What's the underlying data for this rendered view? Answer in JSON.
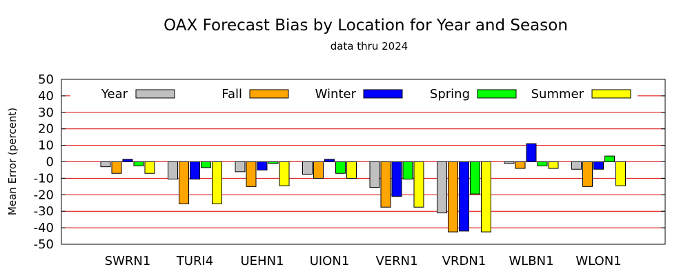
{
  "chart_data": {
    "type": "bar",
    "title": "OAX Forecast Bias by Location for Year and Season",
    "subtitle": "data thru 2024",
    "xlabel": "",
    "ylabel": "Mean Error (percent)",
    "ylim": [
      -50,
      50
    ],
    "yticks": [
      50,
      40,
      30,
      20,
      10,
      0,
      -10,
      -20,
      -30,
      -40,
      -50
    ],
    "grid": "horizontal",
    "grid_color": "#dd0000",
    "legend_position": "top",
    "categories": [
      "SWRN1",
      "TURI4",
      "UEHN1",
      "UION1",
      "VERN1",
      "VRDN1",
      "WLBN1",
      "WLON1"
    ],
    "series": [
      {
        "name": "Year",
        "color": "#c0c0c0",
        "values": [
          -3,
          -10.5,
          -6,
          -7.5,
          -15.5,
          -31,
          -1,
          -4.5
        ]
      },
      {
        "name": "Fall",
        "color": "#ffa500",
        "values": [
          -7,
          -25.5,
          -15,
          -10,
          -27.5,
          -42.5,
          -4,
          -15
        ]
      },
      {
        "name": "Winter",
        "color": "#0000ff",
        "values": [
          1.5,
          -10.5,
          -5,
          1.5,
          -21,
          -42,
          11,
          -4.5
        ]
      },
      {
        "name": "Spring",
        "color": "#00ff00",
        "values": [
          -2.5,
          -3.5,
          -1,
          -7,
          -10.5,
          -19.5,
          -2.5,
          3.5
        ]
      },
      {
        "name": "Summer",
        "color": "#ffff00",
        "values": [
          -7,
          -25.5,
          -14.5,
          -10,
          -27.5,
          -42.5,
          -4,
          -14.5
        ]
      }
    ]
  }
}
